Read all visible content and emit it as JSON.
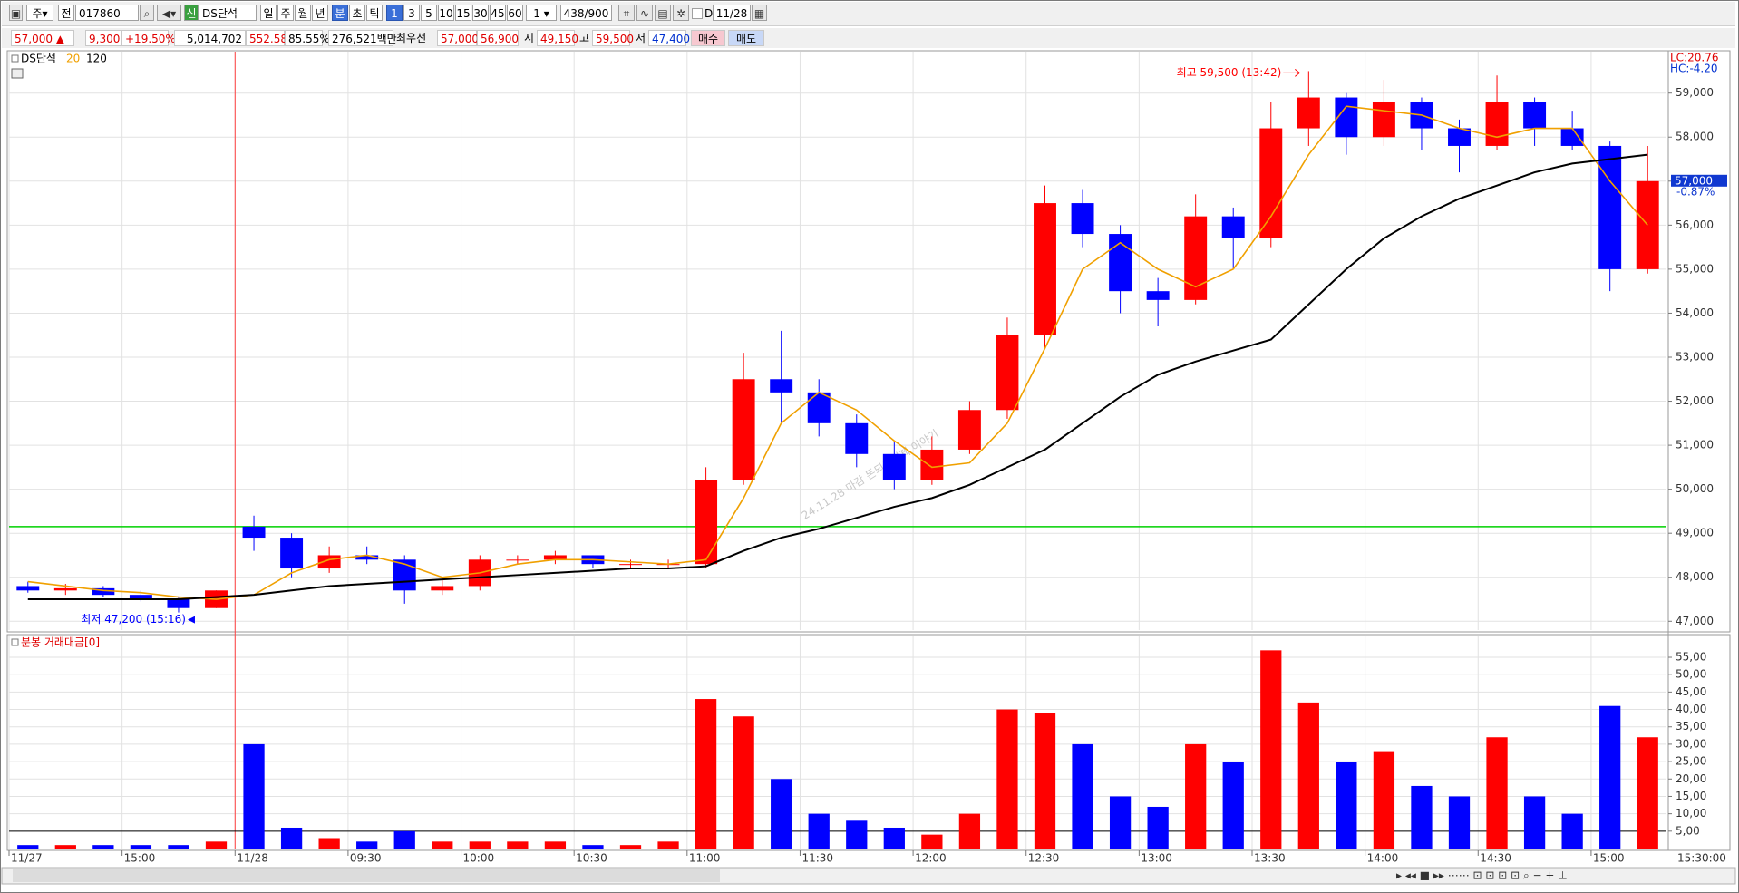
{
  "toolbar": {
    "market": "주",
    "scope": "전",
    "code": "017860",
    "name_badge": "신",
    "name": "DS단석",
    "periods": [
      "일",
      "주",
      "월",
      "년",
      "분",
      "초",
      "틱"
    ],
    "active_period": "분",
    "intervals": [
      "1",
      "3",
      "5",
      "10",
      "15",
      "30",
      "45",
      "60"
    ],
    "active_interval": "1",
    "multiplier": "1",
    "count": "438/900",
    "checkbox_label": "D",
    "date": "11/28"
  },
  "quote": {
    "price": "57,000 ▲",
    "change": "9,300",
    "change_rate": "+19.50%",
    "volume": "5,014,702",
    "volume_ratio": "552.58%",
    "turnover": "85.55%",
    "trading_value": "276,521백만",
    "best_label": "최우선",
    "best_ask": "57,000",
    "best_bid": "56,900",
    "open_label": "시",
    "open": "49,150",
    "high_label": "고",
    "high": "59,500",
    "low_label": "저",
    "low": "47,400",
    "buy": "매수",
    "sell": "매도"
  },
  "chart_data": [
    {
      "type": "candlestick",
      "series_name": "DS단석",
      "up_color": "#ff0000",
      "down_color": "#0000ff",
      "categories": [
        "11/27",
        null,
        null,
        "15:00",
        null,
        null,
        "11/28",
        null,
        null,
        "09:30",
        null,
        null,
        "10:00",
        null,
        null,
        "10:30",
        null,
        null,
        "11:00",
        null,
        null,
        "11:30",
        null,
        null,
        "12:00",
        null,
        null,
        "12:30",
        null,
        null,
        "13:00",
        null,
        null,
        "13:30",
        null,
        null,
        "14:00",
        null,
        null,
        "14:30",
        null,
        null,
        "15:00",
        null
      ],
      "x_end_label": "15:30:00",
      "open": [
        47800,
        47700,
        47750,
        47600,
        47500,
        47300,
        49150,
        48900,
        48200,
        48500,
        48400,
        47700,
        47800,
        48400,
        48400,
        48500,
        48300,
        48300,
        48300,
        50200,
        52500,
        52200,
        51500,
        50800,
        50200,
        50900,
        51800,
        53500,
        56500,
        55800,
        54500,
        54300,
        56200,
        55700,
        58200,
        58900,
        58000,
        58800,
        58200,
        57800,
        58800,
        58200,
        57800,
        55000
      ],
      "high": [
        47900,
        47850,
        47800,
        47700,
        47550,
        47700,
        49400,
        49000,
        48700,
        48700,
        48500,
        48000,
        48500,
        48500,
        48600,
        48500,
        48400,
        48400,
        50500,
        53100,
        53600,
        52500,
        51700,
        51100,
        51200,
        52000,
        53900,
        56900,
        56800,
        56000,
        54800,
        56700,
        56400,
        58800,
        59500,
        59000,
        59300,
        58900,
        58400,
        59400,
        58900,
        58600,
        57900,
        57800
      ],
      "low": [
        47650,
        47600,
        47550,
        47450,
        47200,
        47300,
        48600,
        48000,
        48100,
        48300,
        47400,
        47600,
        47700,
        48300,
        48300,
        48200,
        48200,
        48200,
        48200,
        50100,
        51500,
        51200,
        50500,
        50000,
        50100,
        50800,
        51600,
        53200,
        55500,
        54000,
        53700,
        54200,
        55000,
        55500,
        57800,
        57600,
        57800,
        57700,
        57200,
        57700,
        57800,
        57700,
        54500,
        54900
      ],
      "close": [
        47700,
        47750,
        47600,
        47500,
        47300,
        47700,
        48900,
        48200,
        48500,
        48400,
        47700,
        47800,
        48400,
        48400,
        48500,
        48300,
        48300,
        48300,
        50200,
        52500,
        52200,
        51500,
        50800,
        50200,
        50900,
        51800,
        53500,
        56500,
        55800,
        54500,
        54300,
        56200,
        55700,
        58200,
        58900,
        58000,
        58800,
        58200,
        57800,
        58800,
        58200,
        57800,
        55000,
        57000
      ],
      "lines": [
        {
          "name": "20",
          "color": "#f0a000",
          "values": [
            47900,
            47800,
            47700,
            47650,
            47550,
            47500,
            47600,
            48100,
            48400,
            48500,
            48300,
            48000,
            48100,
            48300,
            48400,
            48400,
            48350,
            48300,
            48400,
            49800,
            51500,
            52200,
            51800,
            51100,
            50500,
            50600,
            51500,
            53200,
            55000,
            55600,
            55000,
            54600,
            55000,
            56200,
            57600,
            58700,
            58600,
            58500,
            58200,
            58000,
            58200,
            58200,
            57000,
            56000
          ]
        },
        {
          "name": "120",
          "color": "#000000",
          "values": [
            47500,
            47500,
            47500,
            47500,
            47500,
            47550,
            47600,
            47700,
            47800,
            47850,
            47900,
            47950,
            48000,
            48050,
            48100,
            48150,
            48200,
            48200,
            48250,
            48600,
            48900,
            49100,
            49350,
            49600,
            49800,
            50100,
            50500,
            50900,
            51500,
            52100,
            52600,
            52900,
            53150,
            53400,
            54200,
            55000,
            55700,
            56200,
            56600,
            56900,
            57200,
            57400,
            57500,
            57600
          ]
        }
      ],
      "reference_lines": [
        {
          "value": 49150,
          "color": "#00d000"
        }
      ],
      "ylim": [
        46800,
        59900
      ],
      "yticks": [
        {
          "value": 47000,
          "label": "47,000"
        },
        {
          "value": 48000,
          "label": "48,000"
        },
        {
          "value": 49000,
          "label": "49,000"
        },
        {
          "value": 50000,
          "label": "50,000"
        },
        {
          "value": 51000,
          "label": "51,000"
        },
        {
          "value": 52000,
          "label": "52,000"
        },
        {
          "value": 53000,
          "label": "53,000"
        },
        {
          "value": 54000,
          "label": "54,000"
        },
        {
          "value": 55000,
          "label": "55,000"
        },
        {
          "value": 56000,
          "label": "56,000"
        },
        {
          "value": 57000,
          "label": "57,000"
        },
        {
          "value": 58000,
          "label": "58,000"
        },
        {
          "value": 59000,
          "label": "59,000"
        }
      ],
      "current_price": {
        "value": 57000,
        "label": "57,000"
      },
      "current_change": "-0.87%",
      "lc": "LC:20.76",
      "hc": "HC:-4.20",
      "annotations": [
        {
          "text": "최고 59,500 (13:42)",
          "color": "#ff0000"
        },
        {
          "text": "최저 47,200 (15:16)",
          "color": "#0000ff"
        }
      ],
      "watermark": "24.11.28 마감 돈되는경제 이야기",
      "grid": true
    },
    {
      "type": "bar",
      "title": "분봉 거래대금[0]",
      "values": [
        1,
        1,
        1,
        1,
        1,
        2,
        30,
        6,
        3,
        2,
        5,
        2,
        2,
        2,
        2,
        1,
        1,
        2,
        43,
        38,
        20,
        10,
        8,
        6,
        4,
        10,
        40,
        39,
        30,
        15,
        12,
        30,
        25,
        57,
        42,
        25,
        28,
        18,
        15,
        32,
        15,
        10,
        41,
        32
      ],
      "reference_lines": [
        {
          "value": 5,
          "color": "#000000"
        }
      ],
      "ylim": [
        0,
        61
      ],
      "yticks": [
        {
          "value": 5,
          "label": "5,00"
        },
        {
          "value": 10,
          "label": "10,00"
        },
        {
          "value": 15,
          "label": "15,00"
        },
        {
          "value": 20,
          "label": "20,00"
        },
        {
          "value": 25,
          "label": "25,00"
        },
        {
          "value": 30,
          "label": "30,00"
        },
        {
          "value": 35,
          "label": "35,00"
        },
        {
          "value": 40,
          "label": "40,00"
        },
        {
          "value": 45,
          "label": "45,00"
        },
        {
          "value": 50,
          "label": "50,00"
        },
        {
          "value": 55,
          "label": "55,00"
        }
      ],
      "grid": true
    }
  ]
}
